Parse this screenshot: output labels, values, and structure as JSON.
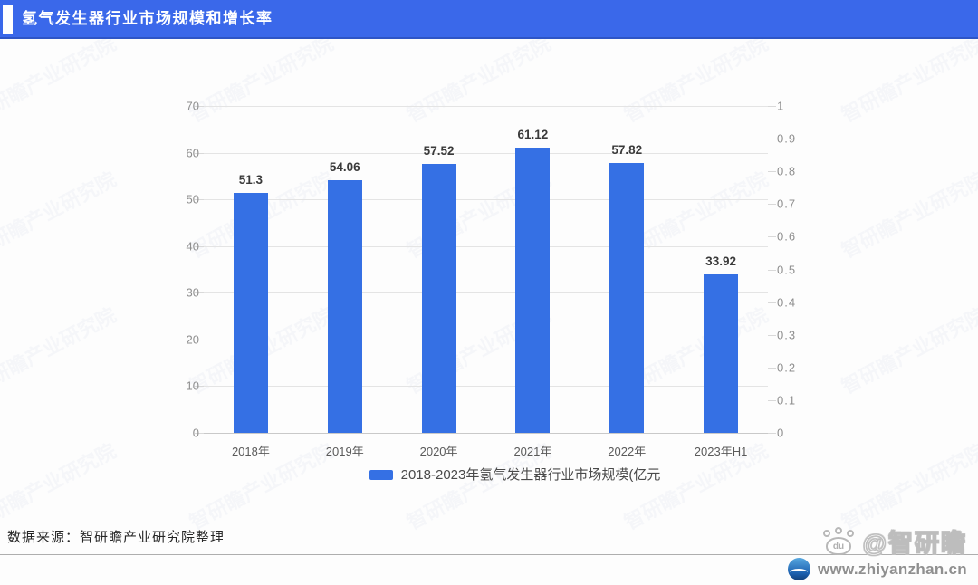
{
  "header": {
    "title": "氢气发生器行业市场规模和增长率"
  },
  "chart_data": {
    "type": "bar",
    "title": "氢气发生器行业市场规模和增长率",
    "categories": [
      "2018年",
      "2019年",
      "2020年",
      "2021年",
      "2022年",
      "2023年H1"
    ],
    "values": [
      51.3,
      54.06,
      57.52,
      61.12,
      57.82,
      33.92
    ],
    "value_labels": [
      "51.3",
      "54.06",
      "57.52",
      "61.12",
      "57.82",
      "33.92"
    ],
    "bar_color": "#3570e4",
    "grid": true,
    "left_axis": {
      "label": "",
      "min": 0,
      "max": 70,
      "step": 10,
      "ticks": [
        "0",
        "10",
        "20",
        "30",
        "40",
        "50",
        "60",
        "70"
      ]
    },
    "right_axis": {
      "label": "",
      "min": 0,
      "max": 1,
      "step": 0.1,
      "ticks": [
        "0",
        "0.1",
        "0.2",
        "0.3",
        "0.4",
        "0.5",
        "0.6",
        "0.7",
        "0.8",
        "0.9",
        "1"
      ]
    },
    "legend_position": "bottom",
    "legend": [
      {
        "label": "2018-2023年氢气发生器行业市场规模(亿元",
        "color": "#3570e4"
      }
    ]
  },
  "footer": {
    "source": "数据来源：智研瞻产业研究院整理"
  },
  "branding": {
    "handle": "@智研瞻",
    "paw_text": "du",
    "url": "www.zhiyanzhan.cn"
  },
  "watermark": {
    "text": "智研瞻产业研究院"
  },
  "colors": {
    "header_blue": "#3a68ea",
    "bar_blue": "#3570e4",
    "axis_gray": "#8e8e8e",
    "grid_gray": "#e4e4e4"
  }
}
